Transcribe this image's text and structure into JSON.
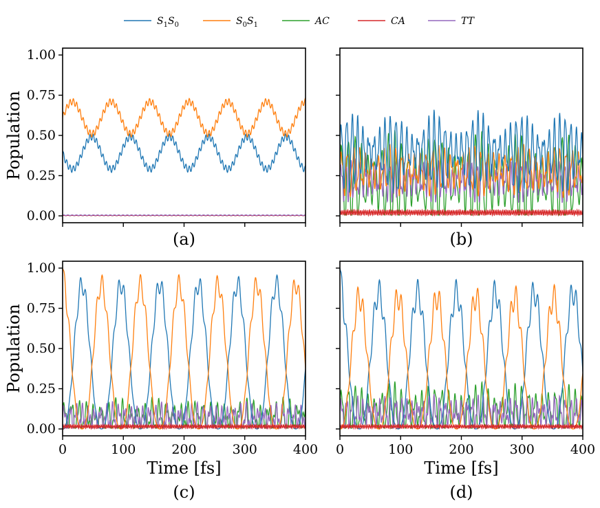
{
  "chart_data": {
    "type": "line",
    "title": "",
    "xlabel": "Time [fs]",
    "ylabel": "Population",
    "xlim": [
      0,
      400
    ],
    "ylim": [
      0,
      1.0
    ],
    "xticks": [
      0,
      100,
      200,
      300,
      400
    ],
    "yticks": [
      0.0,
      0.25,
      0.5,
      0.75,
      1.0
    ],
    "xtick_labels": [
      "0",
      "100",
      "200",
      "300",
      "400"
    ],
    "ytick_labels": [
      "0.00",
      "0.25",
      "0.50",
      "0.75",
      "1.00"
    ],
    "legend": {
      "placement": "top-center",
      "entries": [
        {
          "label_base": "S",
          "sub1": "1",
          "label_mid": "S",
          "sub2": "0",
          "label": "S1S0",
          "color": "#1f77b4"
        },
        {
          "label_base": "S",
          "sub1": "0",
          "label_mid": "S",
          "sub2": "1",
          "label": "S0S1",
          "color": "#ff7f0e"
        },
        {
          "label": "AC",
          "color": "#2ca02c"
        },
        {
          "label": "CA",
          "color": "#d62728"
        },
        {
          "label": "TT",
          "color": "#9467bd"
        }
      ]
    },
    "panels": [
      {
        "label": "(a)",
        "show_xlabel": false,
        "show_ylabel": true,
        "series": [
          {
            "name": "S1S0",
            "color": "#1f77b4",
            "kind": "osc",
            "mean": 0.39,
            "amp": 0.1,
            "period": 64,
            "phase": 0.0,
            "ripple": 0.02,
            "rippleFreq": 0.55
          },
          {
            "name": "S0S1",
            "color": "#ff7f0e",
            "kind": "osc",
            "mean": 0.61,
            "amp": -0.1,
            "period": 64,
            "phase": 0.0,
            "ripple": 0.02,
            "rippleFreq": 0.55
          },
          {
            "name": "AC",
            "color": "#2ca02c",
            "kind": "flat",
            "mean": 0.003,
            "amp": 0.002
          },
          {
            "name": "CA",
            "color": "#d62728",
            "kind": "flat",
            "mean": 0.002,
            "amp": 0.001
          },
          {
            "name": "TT",
            "color": "#9467bd",
            "kind": "flat",
            "mean": 0.004,
            "amp": 0.002
          }
        ]
      },
      {
        "label": "(b)",
        "show_xlabel": false,
        "show_ylabel": false,
        "series": [
          {
            "name": "AC",
            "color": "#2ca02c",
            "kind": "spiky",
            "mean": 0.22,
            "amp": 0.2,
            "period": 11,
            "mod": 0.4
          },
          {
            "name": "TT",
            "color": "#9467bd",
            "kind": "spiky",
            "mean": 0.22,
            "amp": 0.08,
            "period": 8,
            "mod": 0.3
          },
          {
            "name": "S0S1",
            "color": "#ff7f0e",
            "kind": "spiky",
            "mean": 0.28,
            "amp": 0.1,
            "period": 10,
            "mod": 0.3
          },
          {
            "name": "S1S0",
            "color": "#1f77b4",
            "kind": "spiky",
            "mean": 0.4,
            "amp": 0.15,
            "period": 9,
            "mod": 0.5
          },
          {
            "name": "CA",
            "color": "#d62728",
            "kind": "noise",
            "mean": 0.02,
            "amp": 0.015,
            "period": 3
          }
        ]
      },
      {
        "label": "(c)",
        "show_xlabel": true,
        "show_ylabel": true,
        "series": [
          {
            "name": "AC",
            "color": "#2ca02c",
            "kind": "spiky",
            "mean": 0.07,
            "amp": 0.07,
            "period": 12,
            "mod": 0.3
          },
          {
            "name": "TT",
            "color": "#9467bd",
            "kind": "spiky",
            "mean": 0.07,
            "amp": 0.05,
            "period": 10,
            "mod": 0.3
          },
          {
            "name": "S1S0",
            "color": "#1f77b4",
            "kind": "swap",
            "start": 0.0,
            "period": 64,
            "phase": 0,
            "peak": 0.9,
            "ripple": 0.06
          },
          {
            "name": "S0S1",
            "color": "#ff7f0e",
            "kind": "swap",
            "start": 1.0,
            "period": 64,
            "phase": 32,
            "peak": 0.9,
            "ripple": 0.06
          },
          {
            "name": "CA",
            "color": "#d62728",
            "kind": "noise",
            "mean": 0.015,
            "amp": 0.01,
            "period": 3
          }
        ]
      },
      {
        "label": "(d)",
        "show_xlabel": true,
        "show_ylabel": false,
        "series": [
          {
            "name": "AC",
            "color": "#2ca02c",
            "kind": "spiky",
            "mean": 0.11,
            "amp": 0.11,
            "period": 11,
            "mod": 0.35
          },
          {
            "name": "TT",
            "color": "#9467bd",
            "kind": "spiky",
            "mean": 0.1,
            "amp": 0.06,
            "period": 9,
            "mod": 0.3
          },
          {
            "name": "S1S0",
            "color": "#1f77b4",
            "kind": "swap",
            "start": 1.0,
            "period": 64,
            "phase": 32,
            "peak": 0.85,
            "ripple": 0.08
          },
          {
            "name": "S0S1",
            "color": "#ff7f0e",
            "kind": "swap",
            "start": 0.0,
            "period": 64,
            "phase": 0,
            "peak": 0.82,
            "ripple": 0.08
          },
          {
            "name": "CA",
            "color": "#d62728",
            "kind": "noise",
            "mean": 0.015,
            "amp": 0.01,
            "period": 3
          }
        ]
      }
    ]
  }
}
